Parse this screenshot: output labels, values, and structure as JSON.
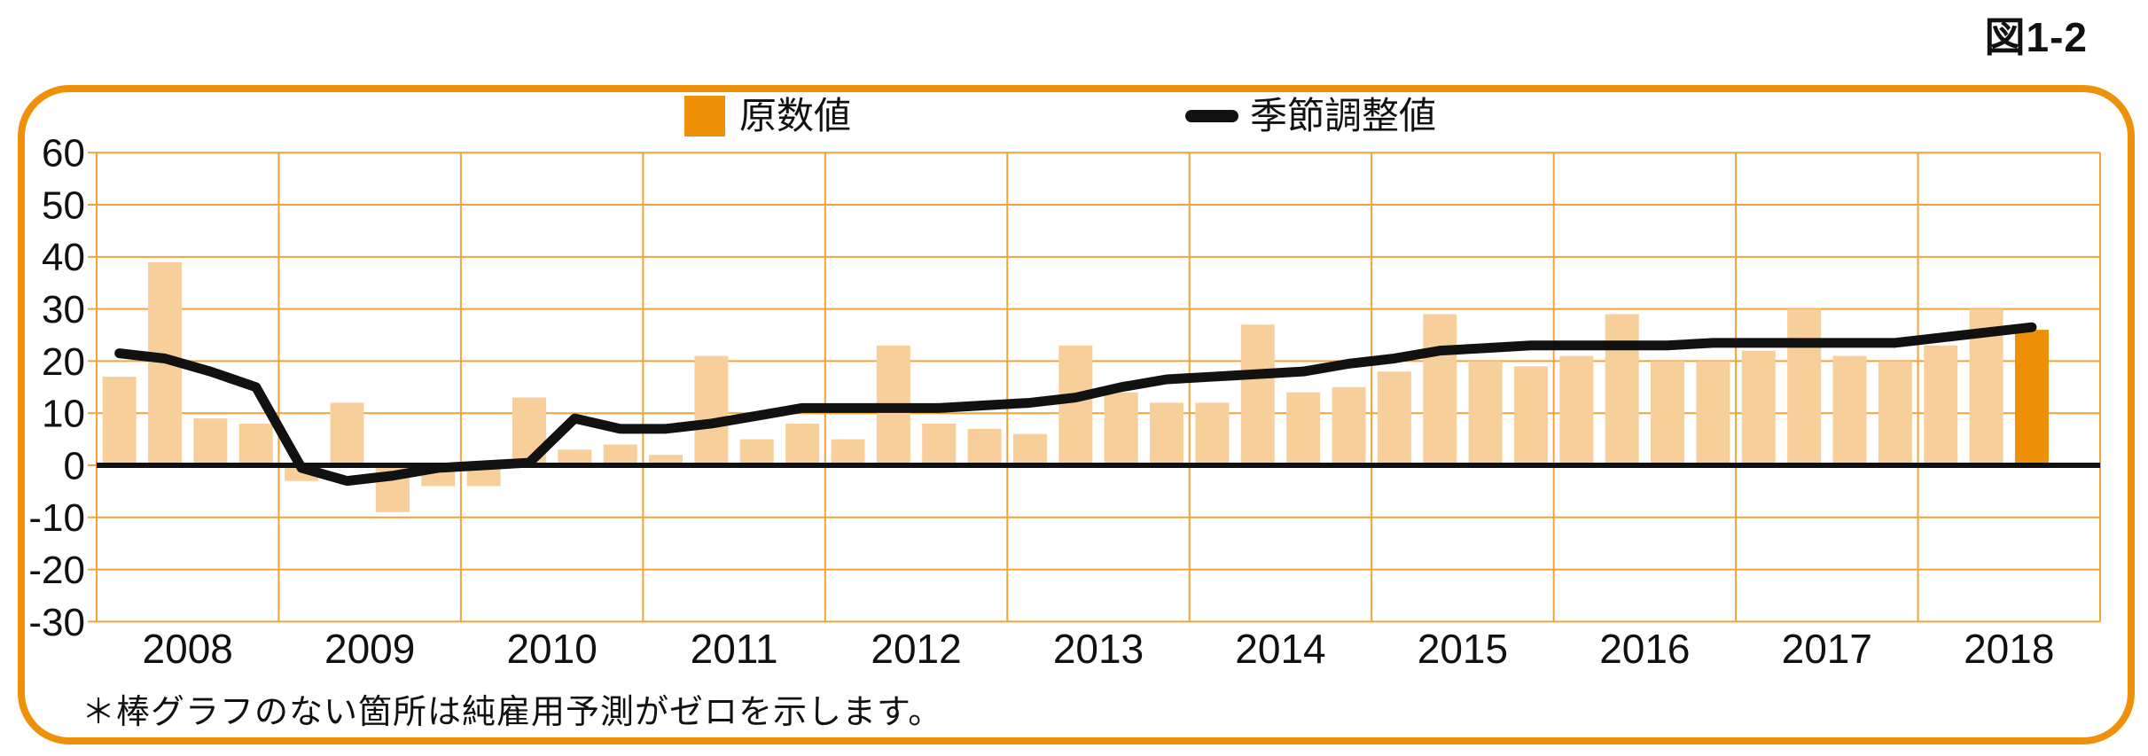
{
  "title": "図1-2",
  "legend": {
    "bar_label": "原数値",
    "line_label": "季節調整値"
  },
  "note": "＊棒グラフのない箇所は純雇用予測がゼロを示します。",
  "colors": {
    "bar": "#F7CF9B",
    "bar_highlight": "#EE9109",
    "line": "#111111",
    "grid": "#F1A337",
    "zero_line": "#111111",
    "border": "#EE9109"
  },
  "chart_data": {
    "type": "bar+line",
    "years": [
      "2008",
      "2009",
      "2010",
      "2011",
      "2012",
      "2013",
      "2014",
      "2015",
      "2016",
      "2017",
      "2018"
    ],
    "quarters_per_year": 4,
    "y_ticks": [
      60,
      50,
      40,
      30,
      20,
      10,
      0,
      -10,
      -20,
      -30
    ],
    "ylim": [
      -30,
      60
    ],
    "grid": true,
    "legend_position": "top",
    "series": [
      {
        "name": "原数値",
        "type": "bar",
        "values": [
          17,
          39,
          9,
          8,
          -3,
          12,
          -9,
          -4,
          -4,
          13,
          3,
          4,
          2,
          21,
          5,
          8,
          5,
          23,
          8,
          7,
          6,
          23,
          14,
          12,
          12,
          27,
          14,
          15,
          18,
          29,
          20,
          19,
          21,
          29,
          20,
          20,
          22,
          30,
          21,
          20,
          23,
          30,
          26
        ]
      },
      {
        "name": "季節調整値",
        "type": "line",
        "values": [
          21.5,
          20.5,
          18,
          15,
          -0.5,
          -3,
          -2,
          -0.5,
          0,
          0.5,
          9,
          7,
          7,
          8,
          9.5,
          11,
          11,
          11,
          11,
          11.5,
          12,
          13,
          15,
          16.5,
          17,
          17.5,
          18,
          19.5,
          20.5,
          22,
          22.5,
          23,
          23,
          23,
          23,
          23.5,
          23.5,
          23.5,
          23.5,
          23.5,
          24.5,
          25.5,
          26.5
        ]
      }
    ],
    "highlight_index": 42
  }
}
